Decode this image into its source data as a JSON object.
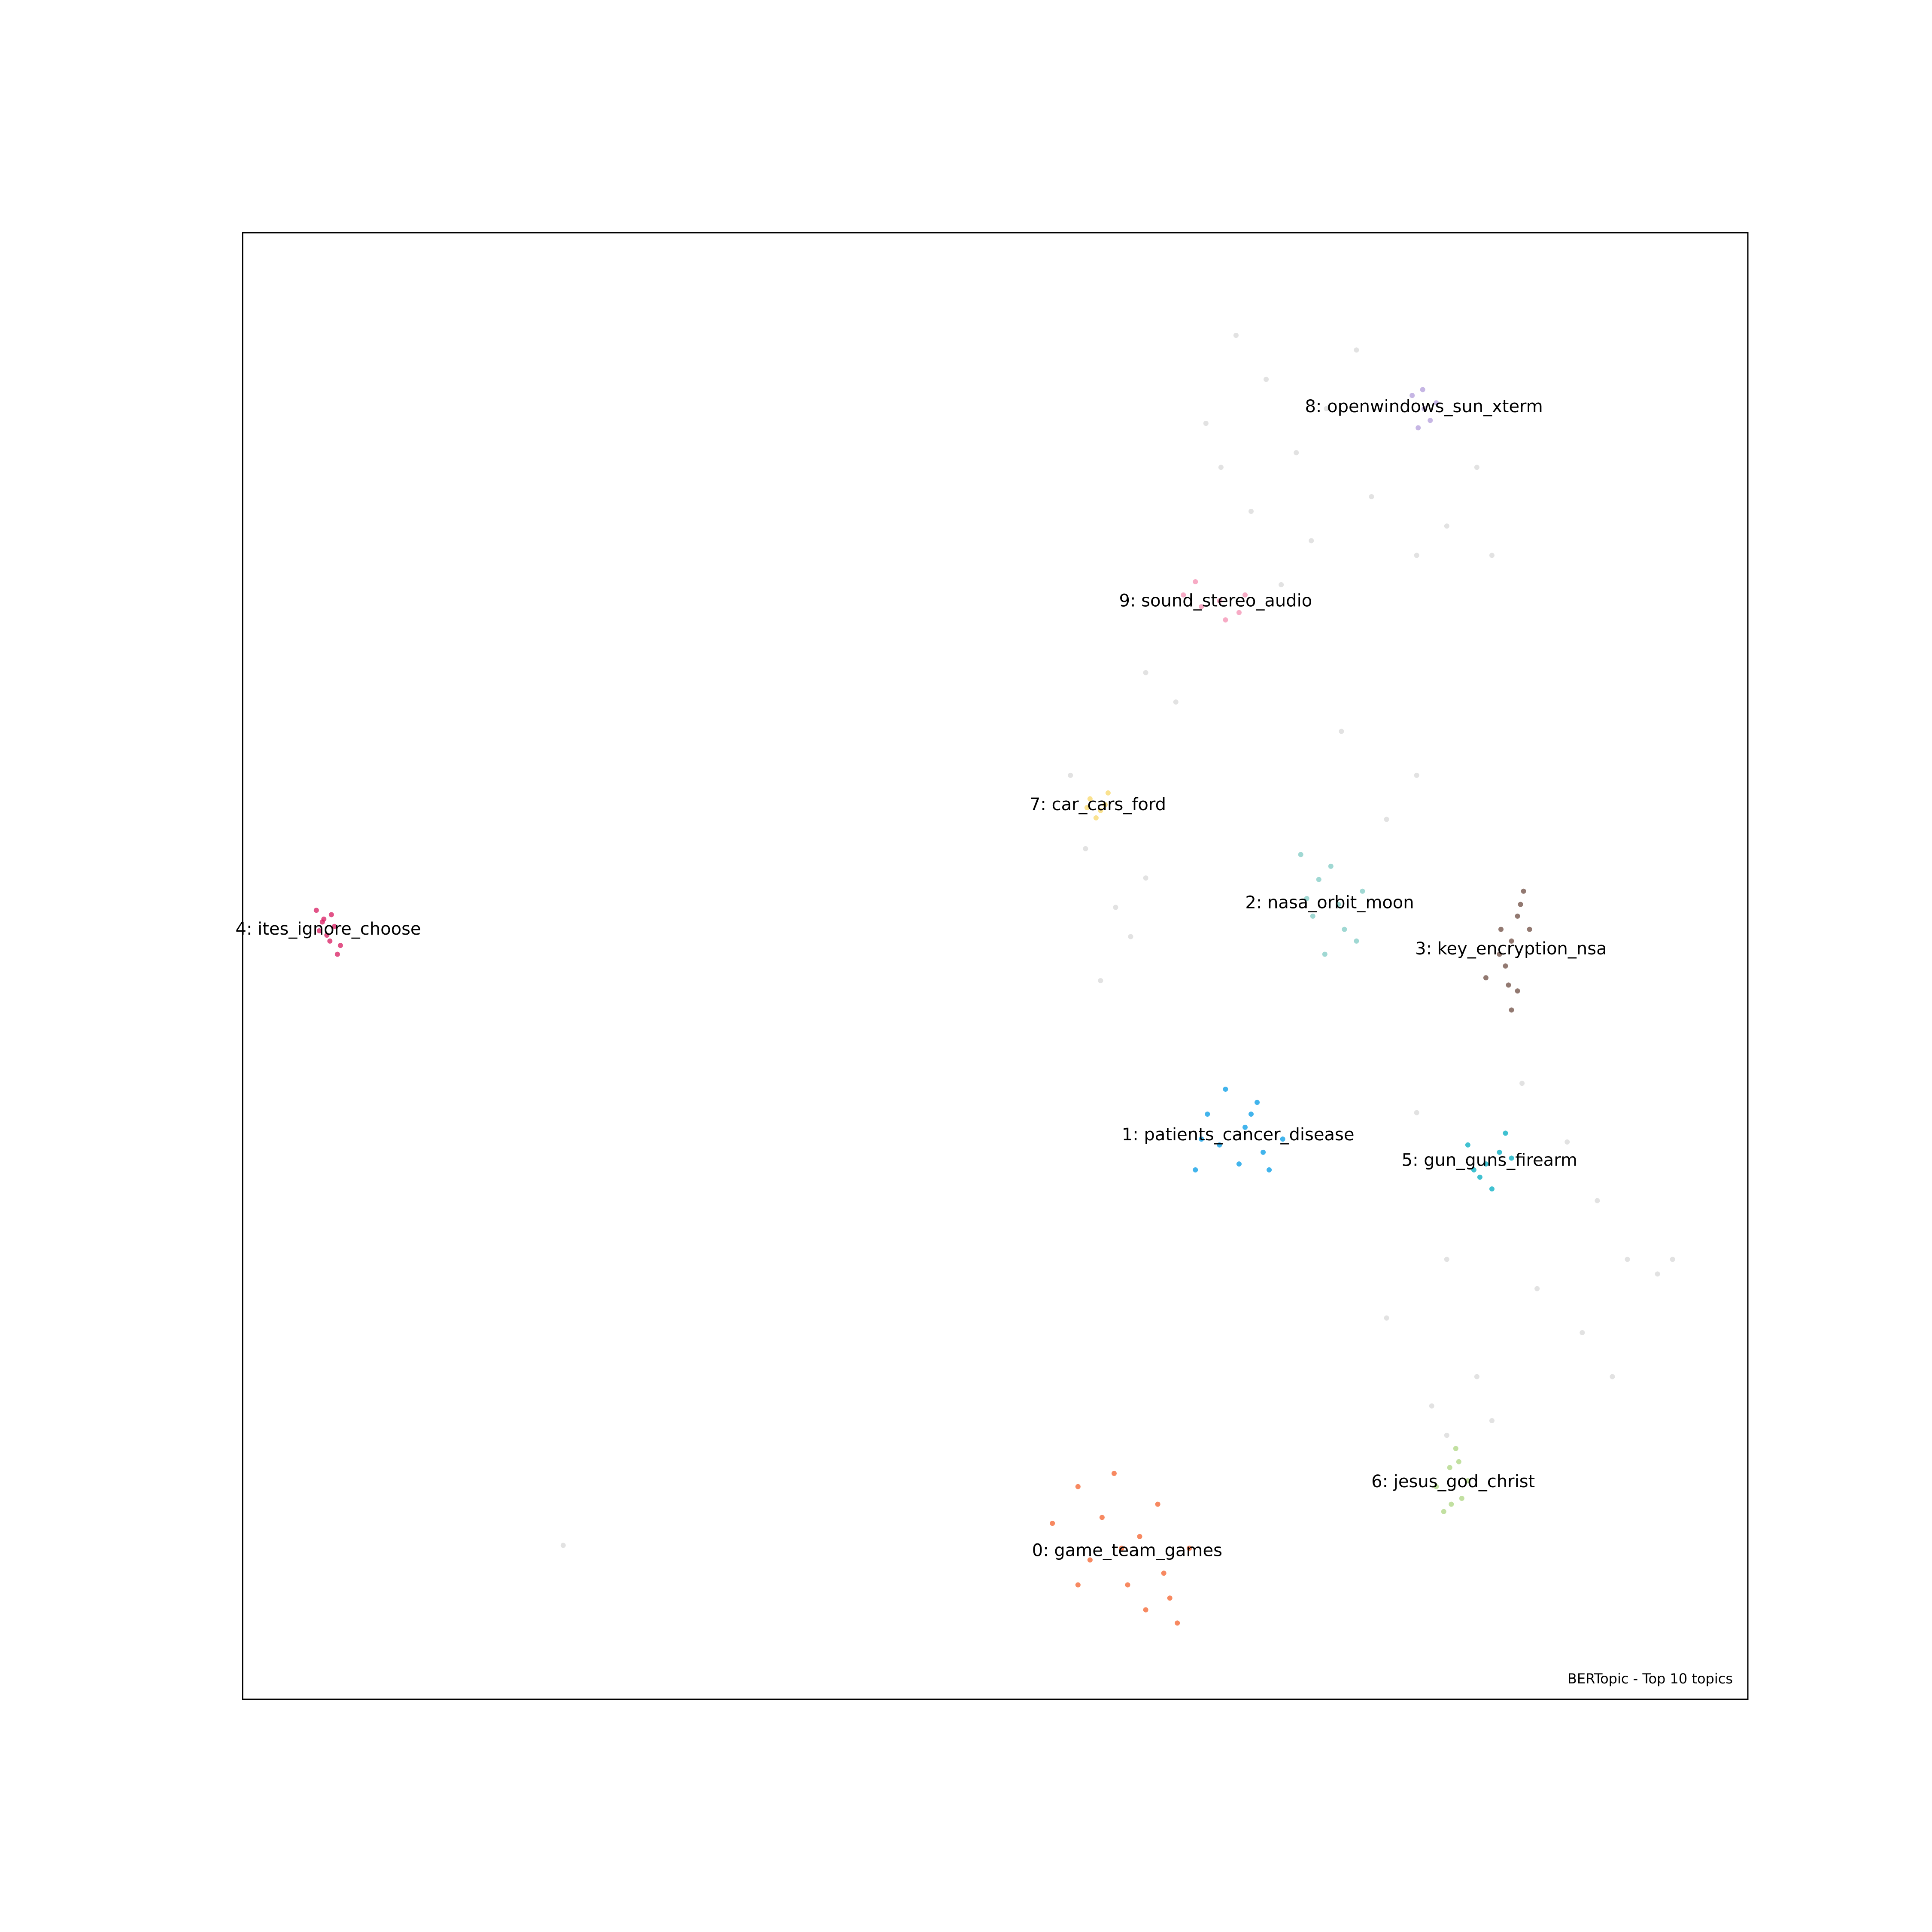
{
  "chart_data": {
    "type": "scatter",
    "annotation": "BERTopic - Top 10 topics",
    "xlim": [
      0,
      100
    ],
    "ylim": [
      0,
      100
    ],
    "series": [
      {
        "color": "#cfcfcf",
        "x": [
          66,
          68,
          64,
          70,
          72,
          75,
          80,
          82,
          78,
          67,
          71,
          74,
          65,
          83,
          69,
          56,
          58,
          59,
          57,
          60,
          55,
          60,
          62,
          73,
          78,
          76,
          78,
          85,
          88,
          90,
          92,
          94,
          89,
          86,
          80,
          76,
          82,
          95,
          91,
          79,
          80,
          83,
          21.3
        ],
        "values": [
          93,
          90,
          87,
          85,
          88,
          82,
          80,
          84,
          78,
          81,
          79,
          92,
          84,
          78,
          76,
          58,
          54,
          52,
          49,
          56,
          63,
          70,
          68,
          66,
          63,
          60,
          40,
          42,
          38,
          34,
          30,
          29,
          25,
          28,
          30,
          26,
          22,
          30,
          22,
          20,
          18,
          19,
          10.5
        ]
      },
      {
        "name": "0: game_team_games",
        "color": "#f4612c",
        "x": [
          53.8,
          55.5,
          56.3,
          57.9,
          58.8,
          60.0,
          61.2,
          62.1,
          62.9,
          57.1,
          59.6,
          55.5,
          60.8,
          61.6,
          58.4
        ],
        "values": [
          12.0,
          14.5,
          9.5,
          15.4,
          7.8,
          6.1,
          8.6,
          5.2,
          10.3,
          12.4,
          11.1,
          7.8,
          13.3,
          6.9,
          10.3
        ]
      },
      {
        "name": "1: patients_cancer_disease",
        "color": "#039be5",
        "x": [
          63.3,
          64.1,
          65.3,
          66.6,
          67.8,
          69.1,
          66.2,
          64.9,
          67.4,
          68.2,
          63.7,
          67.0
        ],
        "values": [
          36.1,
          39.9,
          41.6,
          39.0,
          37.3,
          38.2,
          36.5,
          37.8,
          40.7,
          36.1,
          38.2,
          39.9
        ]
      },
      {
        "name": "2: nasa_orbit_moon",
        "color": "#80cbc4",
        "x": [
          70.3,
          71.5,
          72.8,
          74.0,
          71.1,
          72.3,
          74.4,
          73.2,
          70.7,
          71.9
        ],
        "values": [
          57.6,
          55.9,
          54.2,
          51.7,
          53.4,
          56.8,
          55.1,
          52.5,
          54.6,
          50.8
        ]
      },
      {
        "name": "3: key_encryption_nsa",
        "color": "#6d4c41",
        "x": [
          85.1,
          84.7,
          84.3,
          83.9,
          84.7,
          84.3,
          83.5,
          85.5,
          82.6,
          84.9,
          84.1,
          83.6
        ],
        "values": [
          55.1,
          53.4,
          51.7,
          50.0,
          48.3,
          47.0,
          50.8,
          52.5,
          49.2,
          54.2,
          48.7,
          52.5
        ]
      },
      {
        "name": "4: ites_ignore_choose",
        "color": "#d81b60",
        "x": [
          4.9,
          5.4,
          6.1,
          5.1,
          5.8,
          6.3,
          5.3,
          5.9,
          5.6,
          6.5
        ],
        "values": [
          53.8,
          53.2,
          52.7,
          52.4,
          51.7,
          50.8,
          53.0,
          53.5,
          52.1,
          51.4
        ]
      },
      {
        "name": "5: gun_guns_firearm",
        "color": "#00acc1",
        "x": [
          81.4,
          82.6,
          83.5,
          82.2,
          83.0,
          83.9,
          81.8,
          84.3
        ],
        "values": [
          37.8,
          36.5,
          37.3,
          35.6,
          34.8,
          38.6,
          36.1,
          36.9
        ]
      },
      {
        "name": "6: jesus_god_christ",
        "color": "#aed581",
        "x": [
          79.3,
          80.2,
          81.0,
          80.6,
          79.8,
          81.4,
          80.3,
          80.8
        ],
        "values": [
          14.5,
          15.8,
          13.7,
          17.1,
          12.8,
          14.9,
          13.3,
          16.2
        ]
      },
      {
        "name": "7: car_cars_ford",
        "color": "#f8d86a",
        "x": [
          56.3,
          57.0,
          57.5,
          56.7,
          57.3,
          56.1
        ],
        "values": [
          61.4,
          60.6,
          61.8,
          60.1,
          61.0,
          60.8
        ]
      },
      {
        "name": "8: openwindows_sun_xterm",
        "color": "#b39ddb",
        "x": [
          77.7,
          78.5,
          79.3,
          78.1,
          78.9,
          78.4
        ],
        "values": [
          88.9,
          88.0,
          88.4,
          86.7,
          87.2,
          89.3
        ]
      },
      {
        "name": "9: sound_stereo_audio",
        "color": "#f48fb1",
        "x": [
          62.5,
          63.7,
          64.9,
          66.2,
          63.3,
          65.3,
          66.6
        ],
        "values": [
          75.3,
          74.5,
          74.9,
          74.1,
          76.2,
          73.6,
          75.3
        ]
      }
    ]
  }
}
